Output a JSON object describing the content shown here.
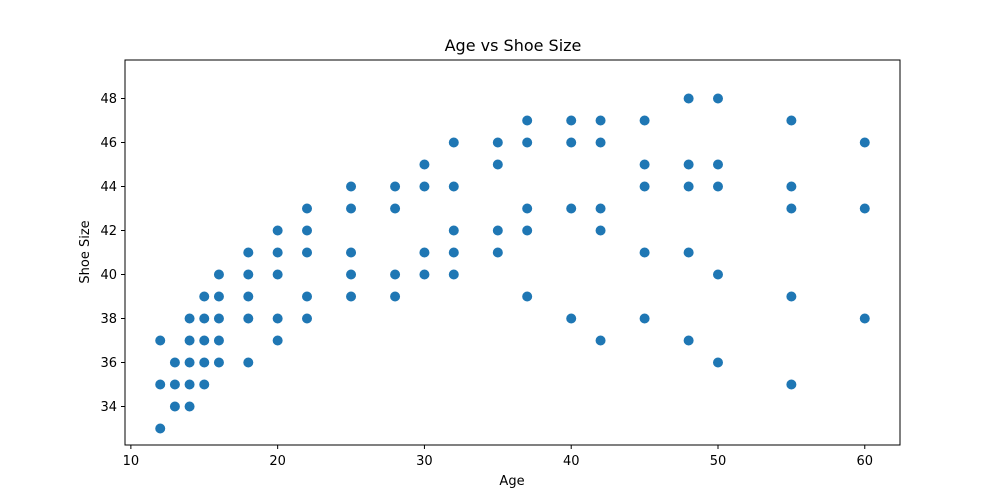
{
  "chart_data": {
    "type": "scatter",
    "title": "Age vs Shoe Size",
    "xlabel": "Age",
    "ylabel": "Shoe Size",
    "xlim": [
      9.6,
      62.4
    ],
    "ylim": [
      32.25,
      49.75
    ],
    "xticks": [
      10,
      20,
      30,
      40,
      50,
      60
    ],
    "yticks": [
      34,
      36,
      38,
      40,
      42,
      44,
      46,
      48
    ],
    "grid": false,
    "marker_color": "#1f77b4",
    "points": [
      {
        "x": 12,
        "y": 33
      },
      {
        "x": 12,
        "y": 35
      },
      {
        "x": 12,
        "y": 37
      },
      {
        "x": 13,
        "y": 34
      },
      {
        "x": 13,
        "y": 35
      },
      {
        "x": 13,
        "y": 36
      },
      {
        "x": 14,
        "y": 34
      },
      {
        "x": 14,
        "y": 35
      },
      {
        "x": 14,
        "y": 36
      },
      {
        "x": 14,
        "y": 37
      },
      {
        "x": 14,
        "y": 38
      },
      {
        "x": 15,
        "y": 35
      },
      {
        "x": 15,
        "y": 36
      },
      {
        "x": 15,
        "y": 37
      },
      {
        "x": 15,
        "y": 38
      },
      {
        "x": 15,
        "y": 39
      },
      {
        "x": 16,
        "y": 36
      },
      {
        "x": 16,
        "y": 37
      },
      {
        "x": 16,
        "y": 38
      },
      {
        "x": 16,
        "y": 39
      },
      {
        "x": 16,
        "y": 40
      },
      {
        "x": 18,
        "y": 36
      },
      {
        "x": 18,
        "y": 38
      },
      {
        "x": 18,
        "y": 39
      },
      {
        "x": 18,
        "y": 40
      },
      {
        "x": 18,
        "y": 41
      },
      {
        "x": 20,
        "y": 37
      },
      {
        "x": 20,
        "y": 38
      },
      {
        "x": 20,
        "y": 40
      },
      {
        "x": 20,
        "y": 41
      },
      {
        "x": 20,
        "y": 42
      },
      {
        "x": 22,
        "y": 38
      },
      {
        "x": 22,
        "y": 39
      },
      {
        "x": 22,
        "y": 41
      },
      {
        "x": 22,
        "y": 42
      },
      {
        "x": 22,
        "y": 43
      },
      {
        "x": 25,
        "y": 39
      },
      {
        "x": 25,
        "y": 40
      },
      {
        "x": 25,
        "y": 41
      },
      {
        "x": 25,
        "y": 43
      },
      {
        "x": 25,
        "y": 44
      },
      {
        "x": 28,
        "y": 39
      },
      {
        "x": 28,
        "y": 40
      },
      {
        "x": 28,
        "y": 43
      },
      {
        "x": 28,
        "y": 44
      },
      {
        "x": 30,
        "y": 40
      },
      {
        "x": 30,
        "y": 41
      },
      {
        "x": 30,
        "y": 44
      },
      {
        "x": 30,
        "y": 45
      },
      {
        "x": 32,
        "y": 40
      },
      {
        "x": 32,
        "y": 41
      },
      {
        "x": 32,
        "y": 42
      },
      {
        "x": 32,
        "y": 44
      },
      {
        "x": 32,
        "y": 46
      },
      {
        "x": 35,
        "y": 41
      },
      {
        "x": 35,
        "y": 42
      },
      {
        "x": 35,
        "y": 45
      },
      {
        "x": 35,
        "y": 46
      },
      {
        "x": 37,
        "y": 39
      },
      {
        "x": 37,
        "y": 42
      },
      {
        "x": 37,
        "y": 43
      },
      {
        "x": 37,
        "y": 46
      },
      {
        "x": 37,
        "y": 47
      },
      {
        "x": 40,
        "y": 38
      },
      {
        "x": 40,
        "y": 43
      },
      {
        "x": 40,
        "y": 46
      },
      {
        "x": 40,
        "y": 47
      },
      {
        "x": 42,
        "y": 37
      },
      {
        "x": 42,
        "y": 42
      },
      {
        "x": 42,
        "y": 43
      },
      {
        "x": 42,
        "y": 46
      },
      {
        "x": 42,
        "y": 47
      },
      {
        "x": 45,
        "y": 38
      },
      {
        "x": 45,
        "y": 41
      },
      {
        "x": 45,
        "y": 44
      },
      {
        "x": 45,
        "y": 45
      },
      {
        "x": 45,
        "y": 47
      },
      {
        "x": 48,
        "y": 37
      },
      {
        "x": 48,
        "y": 41
      },
      {
        "x": 48,
        "y": 44
      },
      {
        "x": 48,
        "y": 45
      },
      {
        "x": 48,
        "y": 48
      },
      {
        "x": 50,
        "y": 36
      },
      {
        "x": 50,
        "y": 40
      },
      {
        "x": 50,
        "y": 44
      },
      {
        "x": 50,
        "y": 45
      },
      {
        "x": 50,
        "y": 48
      },
      {
        "x": 55,
        "y": 35
      },
      {
        "x": 55,
        "y": 39
      },
      {
        "x": 55,
        "y": 43
      },
      {
        "x": 55,
        "y": 44
      },
      {
        "x": 55,
        "y": 47
      },
      {
        "x": 60,
        "y": 38
      },
      {
        "x": 60,
        "y": 43
      },
      {
        "x": 60,
        "y": 46
      }
    ]
  }
}
